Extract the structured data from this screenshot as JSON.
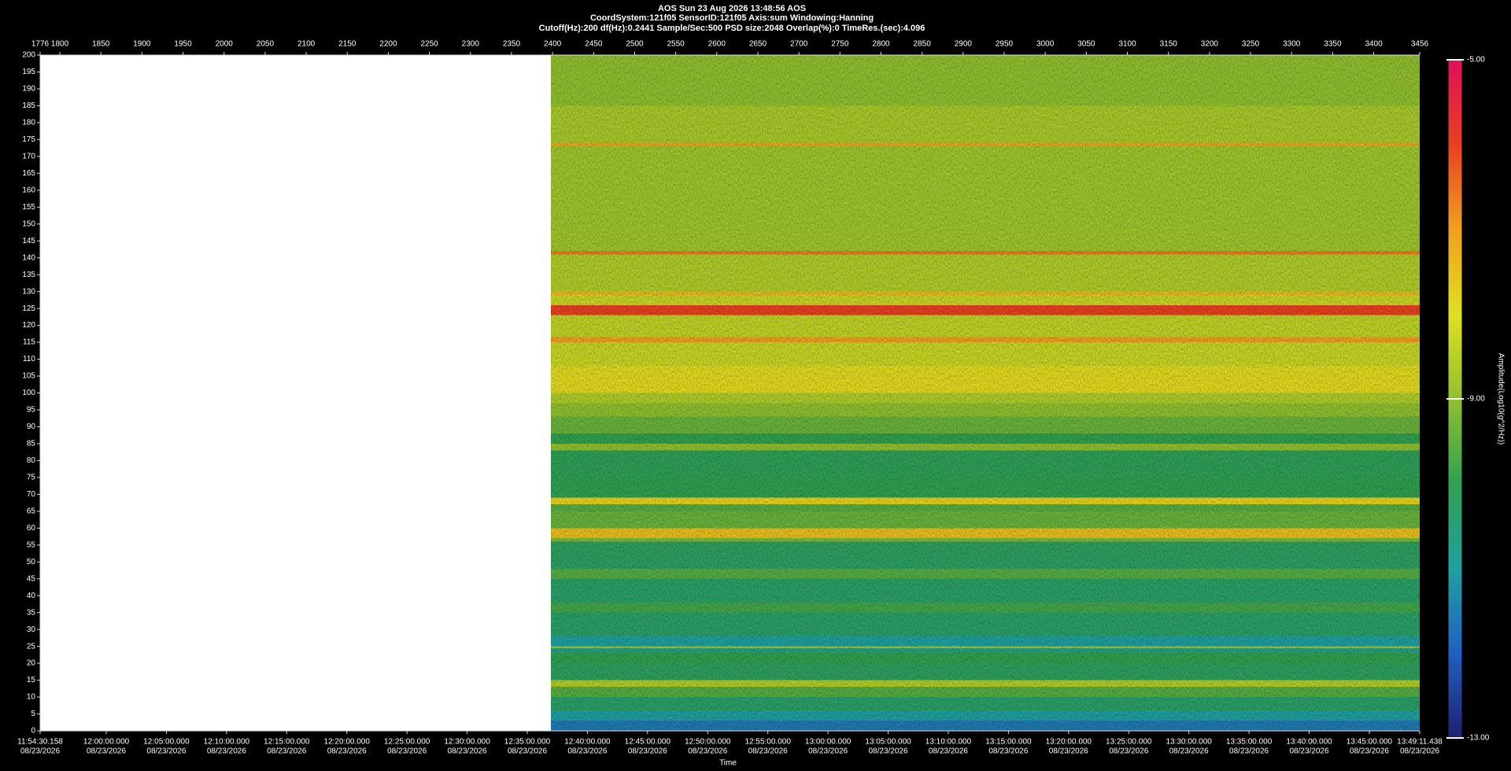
{
  "chart_data": {
    "type": "spectrogram",
    "title": "AOS  Sun 23 Aug 2026 13:48:56  AOS",
    "subtitles": [
      "CoordSystem:121f05   SensorID:121f05   Axis:sum   Windowing:Hanning",
      "Cutoff(Hz):200      df(Hz):0.2441      Sample/Sec:500      PSD size:2048      Overlap(%):0      TimeRes.(sec):4.096"
    ],
    "xlabel": "Time",
    "colorbar_label": "Amplitude(Log10(g^2/Hz))",
    "xlim": [
      1776,
      3456
    ],
    "xticks": [
      1776,
      1800,
      1850,
      1900,
      1950,
      2000,
      2050,
      2100,
      2150,
      2200,
      2250,
      2300,
      2350,
      2400,
      2450,
      2500,
      2550,
      2600,
      2650,
      2700,
      2750,
      2800,
      2850,
      2900,
      2950,
      3000,
      3050,
      3100,
      3150,
      3200,
      3250,
      3300,
      3350,
      3400,
      3456
    ],
    "x2ticks": [
      {
        "value": 1776,
        "label": "11:54:30.158"
      },
      {
        "value": 1856.53,
        "label": "12:00:00.000"
      },
      {
        "value": 1929.77,
        "label": "12:05:00.000"
      },
      {
        "value": 2003.01,
        "label": "12:10:00.000"
      },
      {
        "value": 2076.25,
        "label": "12:15:00.000"
      },
      {
        "value": 2149.5,
        "label": "12:20:00.000"
      },
      {
        "value": 2222.74,
        "label": "12:25:00.000"
      },
      {
        "value": 2295.98,
        "label": "12:30:00.000"
      },
      {
        "value": 2369.22,
        "label": "12:35:00.000"
      },
      {
        "value": 2442.46,
        "label": "12:40:00.000"
      },
      {
        "value": 2515.71,
        "label": "12:45:00.000"
      },
      {
        "value": 2588.95,
        "label": "12:50:00.000"
      },
      {
        "value": 2662.19,
        "label": "12:55:00.000"
      },
      {
        "value": 2735.43,
        "label": "13:00:00.000"
      },
      {
        "value": 2808.67,
        "label": "13:05:00.000"
      },
      {
        "value": 2881.91,
        "label": "13:10:00.000"
      },
      {
        "value": 2955.16,
        "label": "13:15:00.000"
      },
      {
        "value": 3028.4,
        "label": "13:20:00.000"
      },
      {
        "value": 3101.64,
        "label": "13:25:00.000"
      },
      {
        "value": 3174.88,
        "label": "13:30:00.000"
      },
      {
        "value": 3248.12,
        "label": "13:35:00.000"
      },
      {
        "value": 3321.37,
        "label": "13:40:00.000"
      },
      {
        "value": 3394.61,
        "label": "13:45:00.000"
      },
      {
        "value": 3456,
        "label": "13:49:11.438"
      }
    ],
    "tick_date": "08/23/2026",
    "ylim": [
      0,
      200
    ],
    "yticks": [
      0,
      5,
      10,
      15,
      20,
      25,
      30,
      35,
      40,
      45,
      50,
      55,
      60,
      65,
      70,
      75,
      80,
      85,
      90,
      95,
      100,
      105,
      110,
      115,
      120,
      125,
      130,
      135,
      140,
      145,
      150,
      155,
      160,
      165,
      170,
      175,
      180,
      185,
      190,
      195,
      200
    ],
    "clim": [
      -13,
      -5
    ],
    "cticks": [
      {
        "value": -13,
        "label": "-13.00"
      },
      {
        "value": -9,
        "label": "-9.00"
      },
      {
        "value": -5,
        "label": "-5.00"
      }
    ],
    "colorscale": [
      "#202070",
      "#2060c0",
      "#20a0a0",
      "#30a050",
      "#90c030",
      "#e0e020",
      "#f0a020",
      "#e84020",
      "#e0105a"
    ],
    "time_range": [
      2398,
      3456
    ],
    "bands": [
      0,
      3,
      6,
      10,
      13,
      15,
      20,
      23,
      24.5,
      25,
      28,
      35,
      38,
      45,
      48,
      56,
      57,
      60,
      65,
      67,
      69,
      75,
      83,
      85,
      88,
      93,
      97,
      100,
      108,
      115,
      116.5,
      123,
      126,
      129,
      130,
      141,
      142,
      173,
      174,
      185,
      200
    ],
    "values": [
      -11.6,
      -11.0,
      -10.3,
      -9.6,
      -8.6,
      -10.2,
      -10.0,
      -10.6,
      -8.8,
      -11.0,
      -10.3,
      -9.8,
      -10.3,
      -9.6,
      -10.2,
      -9.2,
      -7.5,
      -9.4,
      -9.6,
      -7.8,
      -10.0,
      -10.1,
      -9.0,
      -10.0,
      -9.4,
      -9.0,
      -8.6,
      -7.9,
      -8.3,
      -7.0,
      -8.4,
      -6.0,
      -8.3,
      -7.4,
      -8.6,
      -6.6,
      -8.8,
      -7.1,
      -8.7,
      -9.0
    ]
  }
}
